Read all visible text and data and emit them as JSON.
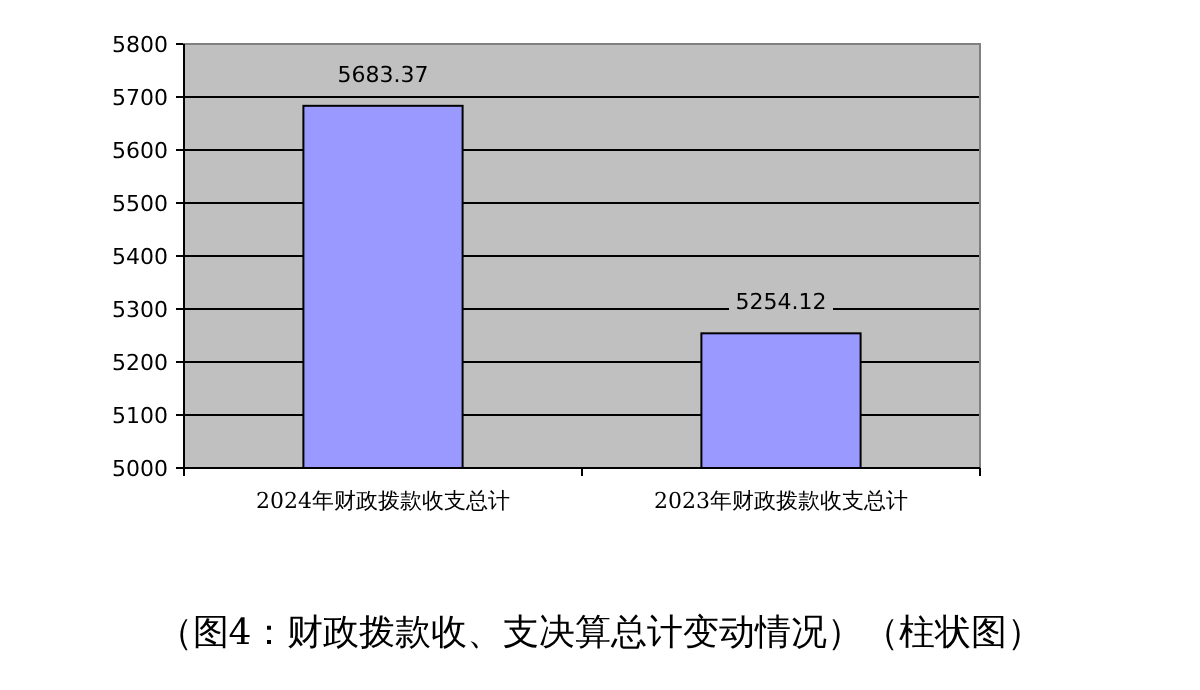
{
  "chart_data": {
    "type": "bar",
    "categories": [
      "2024年财政拨款收支总计",
      "2023年财政拨款收支总计"
    ],
    "values": [
      5683.37,
      5254.12
    ],
    "color": "#9999ff",
    "ylim": [
      5000,
      5800
    ],
    "yticks": [
      5000,
      5100,
      5200,
      5300,
      5400,
      5500,
      5600,
      5700,
      5800
    ],
    "grid": "y",
    "data_labels": true,
    "annotations": [
      "（图4：财政拨款收、支决算总计变动情况）（柱状图）"
    ]
  }
}
